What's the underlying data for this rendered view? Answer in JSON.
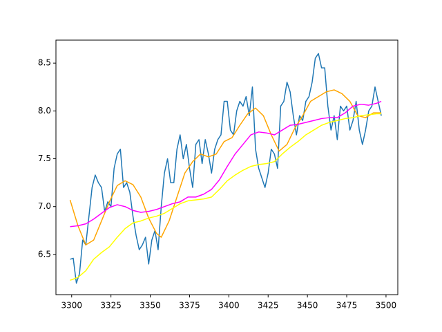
{
  "chart_data": {
    "type": "line",
    "xlim": [
      3290,
      3507.5
    ],
    "ylim": [
      6.08,
      8.74
    ],
    "xticks": [
      3300,
      3325,
      3350,
      3375,
      3400,
      3425,
      3450,
      3475,
      3500
    ],
    "yticks": [
      6.5,
      {
        "value": 7,
        "label": "7.0"
      },
      7.5,
      {
        "value": 8,
        "label": "8.0"
      },
      8.5
    ],
    "series": [
      {
        "color": "#1f77b4",
        "x": [
          3299,
          3301,
          3303,
          3305,
          3307,
          3309,
          3311,
          3313,
          3315,
          3317,
          3319,
          3321,
          3323,
          3325,
          3327,
          3329,
          3331,
          3333,
          3335,
          3337,
          3339,
          3341,
          3343,
          3345,
          3347,
          3349,
          3351,
          3353,
          3355,
          3357,
          3359,
          3361,
          3363,
          3365,
          3367,
          3369,
          3371,
          3373,
          3375,
          3377,
          3379,
          3381,
          3383,
          3385,
          3387,
          3389,
          3391,
          3393,
          3395,
          3397,
          3399,
          3401,
          3403,
          3405,
          3407,
          3409,
          3411,
          3413,
          3415,
          3417,
          3419,
          3421,
          3423,
          3425,
          3427,
          3429,
          3431,
          3433,
          3435,
          3437,
          3439,
          3441,
          3443,
          3445,
          3447,
          3449,
          3451,
          3453,
          3455,
          3457,
          3459,
          3461,
          3463,
          3465,
          3467,
          3469,
          3471,
          3473,
          3475,
          3477,
          3479,
          3481,
          3483,
          3485,
          3487,
          3489,
          3491,
          3493,
          3495,
          3497
        ],
        "values": [
          6.45,
          6.46,
          6.2,
          6.3,
          6.65,
          6.6,
          6.9,
          7.2,
          7.33,
          7.25,
          7.2,
          6.95,
          7.05,
          7.0,
          7.4,
          7.55,
          7.6,
          7.2,
          7.25,
          7.15,
          6.9,
          6.7,
          6.55,
          6.6,
          6.68,
          6.4,
          6.65,
          6.75,
          6.55,
          7.0,
          7.35,
          7.5,
          7.25,
          7.25,
          7.6,
          7.75,
          7.5,
          7.65,
          7.4,
          7.2,
          7.65,
          7.7,
          7.45,
          7.7,
          7.55,
          7.35,
          7.6,
          7.7,
          7.75,
          8.1,
          8.1,
          7.8,
          7.75,
          8.0,
          8.1,
          8.05,
          8.15,
          7.95,
          8.25,
          7.6,
          7.4,
          7.3,
          7.2,
          7.35,
          7.6,
          7.55,
          7.4,
          8.05,
          8.1,
          8.3,
          8.2,
          7.95,
          7.75,
          7.95,
          7.9,
          8.1,
          8.15,
          8.3,
          8.55,
          8.6,
          8.45,
          8.45,
          8.05,
          7.8,
          7.95,
          7.7,
          8.05,
          8.0,
          8.05,
          7.8,
          7.9,
          8.1,
          7.8,
          7.65,
          7.8,
          8.0,
          8.05,
          8.25,
          8.1,
          7.95
        ]
      },
      {
        "color": "#ffa500",
        "x": [
          3299,
          3304,
          3309,
          3314,
          3319,
          3324,
          3329,
          3334,
          3339,
          3344,
          3349,
          3354,
          3357,
          3362,
          3367,
          3372,
          3377,
          3382,
          3387,
          3392,
          3397,
          3402,
          3407,
          3412,
          3417,
          3422,
          3427,
          3432,
          3437,
          3442,
          3447,
          3452,
          3457,
          3462,
          3467,
          3472,
          3477,
          3482,
          3487,
          3492,
          3497
        ],
        "values": [
          7.07,
          6.8,
          6.6,
          6.65,
          6.85,
          7.05,
          7.22,
          7.27,
          7.23,
          7.1,
          6.88,
          6.72,
          6.68,
          6.85,
          7.1,
          7.35,
          7.47,
          7.55,
          7.52,
          7.55,
          7.68,
          7.72,
          7.85,
          7.97,
          8.03,
          7.95,
          7.75,
          7.58,
          7.65,
          7.82,
          7.95,
          8.1,
          8.15,
          8.2,
          8.22,
          8.18,
          8.1,
          7.95,
          7.93,
          7.98,
          7.98
        ]
      },
      {
        "color": "#ff00ff",
        "x": [
          3299,
          3304,
          3309,
          3314,
          3319,
          3324,
          3329,
          3334,
          3339,
          3344,
          3349,
          3354,
          3359,
          3364,
          3369,
          3374,
          3379,
          3384,
          3389,
          3394,
          3399,
          3404,
          3409,
          3414,
          3419,
          3424,
          3429,
          3434,
          3439,
          3444,
          3449,
          3454,
          3459,
          3464,
          3469,
          3474,
          3479,
          3484,
          3489,
          3494,
          3497
        ],
        "values": [
          6.79,
          6.8,
          6.82,
          6.87,
          6.93,
          6.99,
          7.02,
          7.0,
          6.96,
          6.94,
          6.95,
          6.97,
          7.0,
          7.03,
          7.05,
          7.1,
          7.1,
          7.13,
          7.18,
          7.28,
          7.42,
          7.55,
          7.65,
          7.75,
          7.78,
          7.77,
          7.75,
          7.8,
          7.85,
          7.86,
          7.88,
          7.9,
          7.92,
          7.93,
          7.93,
          7.98,
          8.05,
          8.07,
          8.06,
          8.08,
          8.1
        ]
      },
      {
        "color": "#ffff00",
        "x": [
          3299,
          3304,
          3309,
          3314,
          3319,
          3324,
          3329,
          3334,
          3339,
          3344,
          3349,
          3354,
          3359,
          3364,
          3369,
          3374,
          3379,
          3384,
          3389,
          3394,
          3399,
          3404,
          3409,
          3414,
          3419,
          3424,
          3429,
          3434,
          3439,
          3444,
          3449,
          3454,
          3459,
          3464,
          3469,
          3474,
          3479,
          3484,
          3489,
          3494,
          3497
        ],
        "values": [
          6.23,
          6.26,
          6.33,
          6.45,
          6.52,
          6.58,
          6.68,
          6.77,
          6.83,
          6.85,
          6.88,
          6.9,
          6.93,
          6.98,
          7.03,
          7.06,
          7.07,
          7.08,
          7.1,
          7.18,
          7.27,
          7.33,
          7.38,
          7.42,
          7.44,
          7.45,
          7.47,
          7.55,
          7.62,
          7.68,
          7.75,
          7.8,
          7.85,
          7.88,
          7.9,
          7.92,
          7.93,
          7.95,
          7.96,
          7.97,
          7.97
        ]
      }
    ]
  }
}
